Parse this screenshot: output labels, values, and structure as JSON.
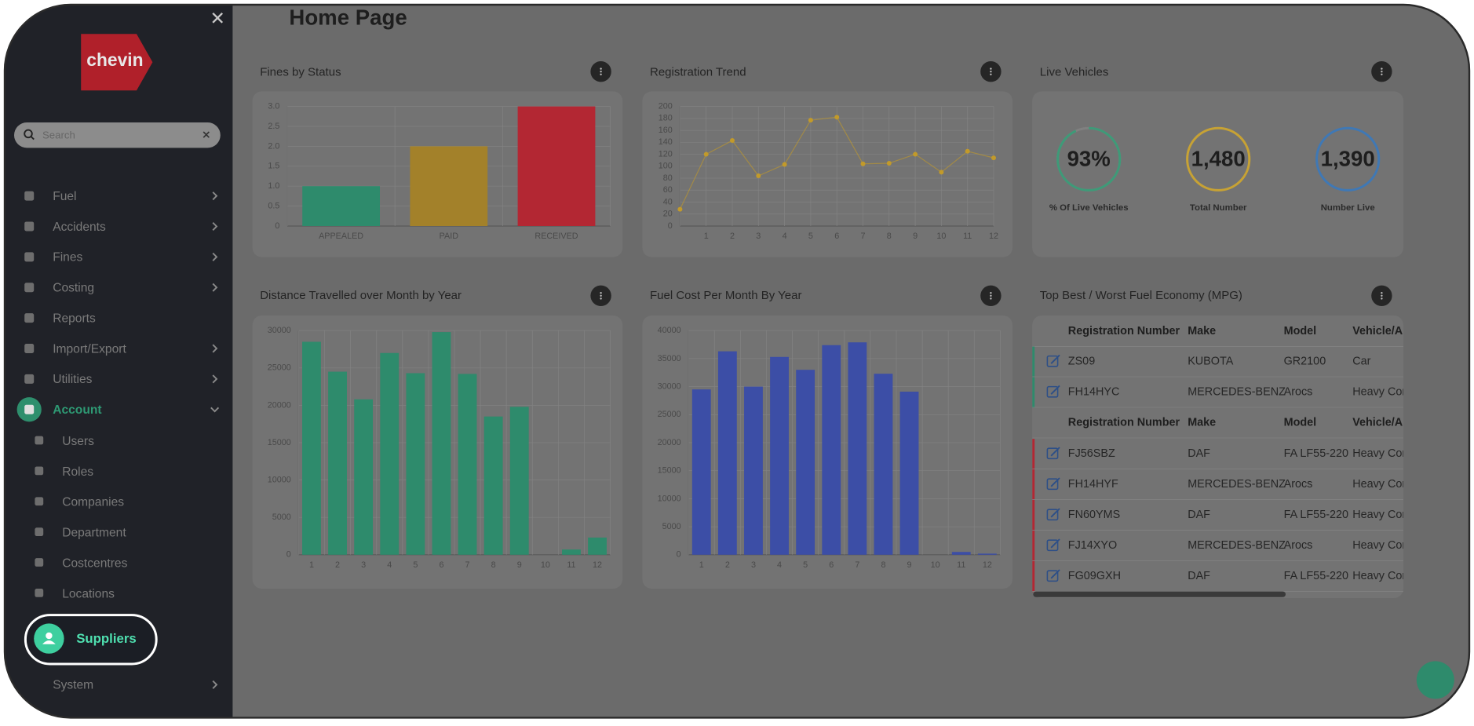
{
  "sidebar": {
    "logo": "chevin",
    "search_placeholder": "Search",
    "menu": [
      {
        "label": "Fuel",
        "chevron": "right"
      },
      {
        "label": "Accidents",
        "chevron": "right"
      },
      {
        "label": "Fines",
        "chevron": "right"
      },
      {
        "label": "Costing",
        "chevron": "right"
      },
      {
        "label": "Reports"
      },
      {
        "label": "Import/Export",
        "chevron": "right"
      },
      {
        "label": "Utilities",
        "chevron": "right"
      },
      {
        "label": "Account",
        "chevron": "down",
        "active": true
      }
    ],
    "submenu": [
      "Users",
      "Roles",
      "Companies",
      "Department",
      "Costcentres",
      "Locations"
    ],
    "highlighted": "Suppliers",
    "footer_item": {
      "label": "System",
      "chevron": "right"
    }
  },
  "page_title": "Home Page",
  "charts": [
    {
      "type": "bar",
      "title": "Fines by Status",
      "categories": [
        "APPEALED",
        "PAID",
        "RECEIVED"
      ],
      "values": [
        1,
        2,
        3
      ],
      "colors": [
        "#2e8b6c",
        "#a3812a",
        "#b32733"
      ],
      "ylim": [
        0,
        3
      ],
      "yticks": [
        0,
        0.5,
        {
          "value": 1,
          "label": "1.0"
        },
        1.5,
        {
          "value": 2,
          "label": "2.0"
        },
        2.5,
        {
          "value": 3,
          "label": "3.0"
        }
      ],
      "grid": true
    },
    {
      "type": "line",
      "title": "Registration Trend",
      "categories": [
        null,
        "1",
        "2",
        "3",
        "4",
        "5",
        "6",
        "7",
        "8",
        "9",
        "10",
        "11",
        "12"
      ],
      "values": [
        28,
        120,
        143,
        84,
        103,
        177,
        182,
        104,
        105,
        120,
        90,
        125,
        114
      ],
      "color": "#c29a2a",
      "ylim": [
        0,
        200
      ],
      "yticks": [
        0,
        20,
        40,
        60,
        80,
        100,
        120,
        140,
        160,
        180,
        200
      ],
      "grid": true
    },
    {
      "type": "bar",
      "title": "Distance Travelled over Month by Year",
      "categories": [
        "1",
        "2",
        "3",
        "4",
        "5",
        "6",
        "7",
        "8",
        "9",
        "10",
        "11",
        "12"
      ],
      "values": [
        28500,
        24500,
        20800,
        27000,
        24300,
        29800,
        24200,
        18500,
        19800,
        0,
        700,
        2300
      ],
      "color": "#2e8b6c",
      "ylim": [
        0,
        30000
      ],
      "yticks": [
        0,
        5000,
        10000,
        15000,
        20000,
        25000,
        30000
      ],
      "grid": true
    },
    {
      "type": "bar",
      "title": "Fuel Cost Per Month By Year",
      "categories": [
        "1",
        "2",
        "3",
        "4",
        "5",
        "6",
        "7",
        "8",
        "9",
        "10",
        "11",
        "12"
      ],
      "values": [
        29500,
        36300,
        30000,
        35300,
        33000,
        37400,
        37900,
        32300,
        29100,
        0,
        500,
        200
      ],
      "color": "#3c4ea6",
      "ylim": [
        0,
        40000
      ],
      "yticks": [
        0,
        5000,
        10000,
        15000,
        20000,
        25000,
        30000,
        35000,
        40000
      ],
      "grid": true
    }
  ],
  "live_vehicles": {
    "title": "Live Vehicles",
    "kpis": [
      {
        "text": "93%",
        "percent": 93,
        "name": "% Of Live Vehicles",
        "color": "#3e9a78"
      },
      {
        "text": "1,480",
        "name": "Total Number",
        "color": "#c7a234"
      },
      {
        "text": "1,390",
        "name": "Number Live",
        "color": "#3f78b5"
      }
    ]
  },
  "fuel_table": {
    "title": "Top Best / Worst Fuel Economy (MPG)",
    "columns": [
      "Registration Number",
      "Make",
      "Model",
      "Vehicle/A"
    ],
    "best_rows": [
      [
        "ZS09",
        "KUBOTA",
        "GR2100",
        "Car"
      ],
      [
        "FH14HYC",
        "MERCEDES-BENZ",
        "Arocs",
        "Heavy Cor"
      ]
    ],
    "worst_rows": [
      [
        "FJ56SBZ",
        "DAF",
        "FA LF55-220",
        "Heavy Cor"
      ],
      [
        "FH14HYF",
        "MERCEDES-BENZ",
        "Arocs",
        "Heavy Cor"
      ],
      [
        "FN60YMS",
        "DAF",
        "FA LF55-220",
        "Heavy Cor"
      ],
      [
        "FJ14XYO",
        "MERCEDES-BENZ",
        "Arocs",
        "Heavy Cor"
      ],
      [
        "FG09GXH",
        "DAF",
        "FA LF55-220",
        "Heavy Cor"
      ]
    ]
  }
}
